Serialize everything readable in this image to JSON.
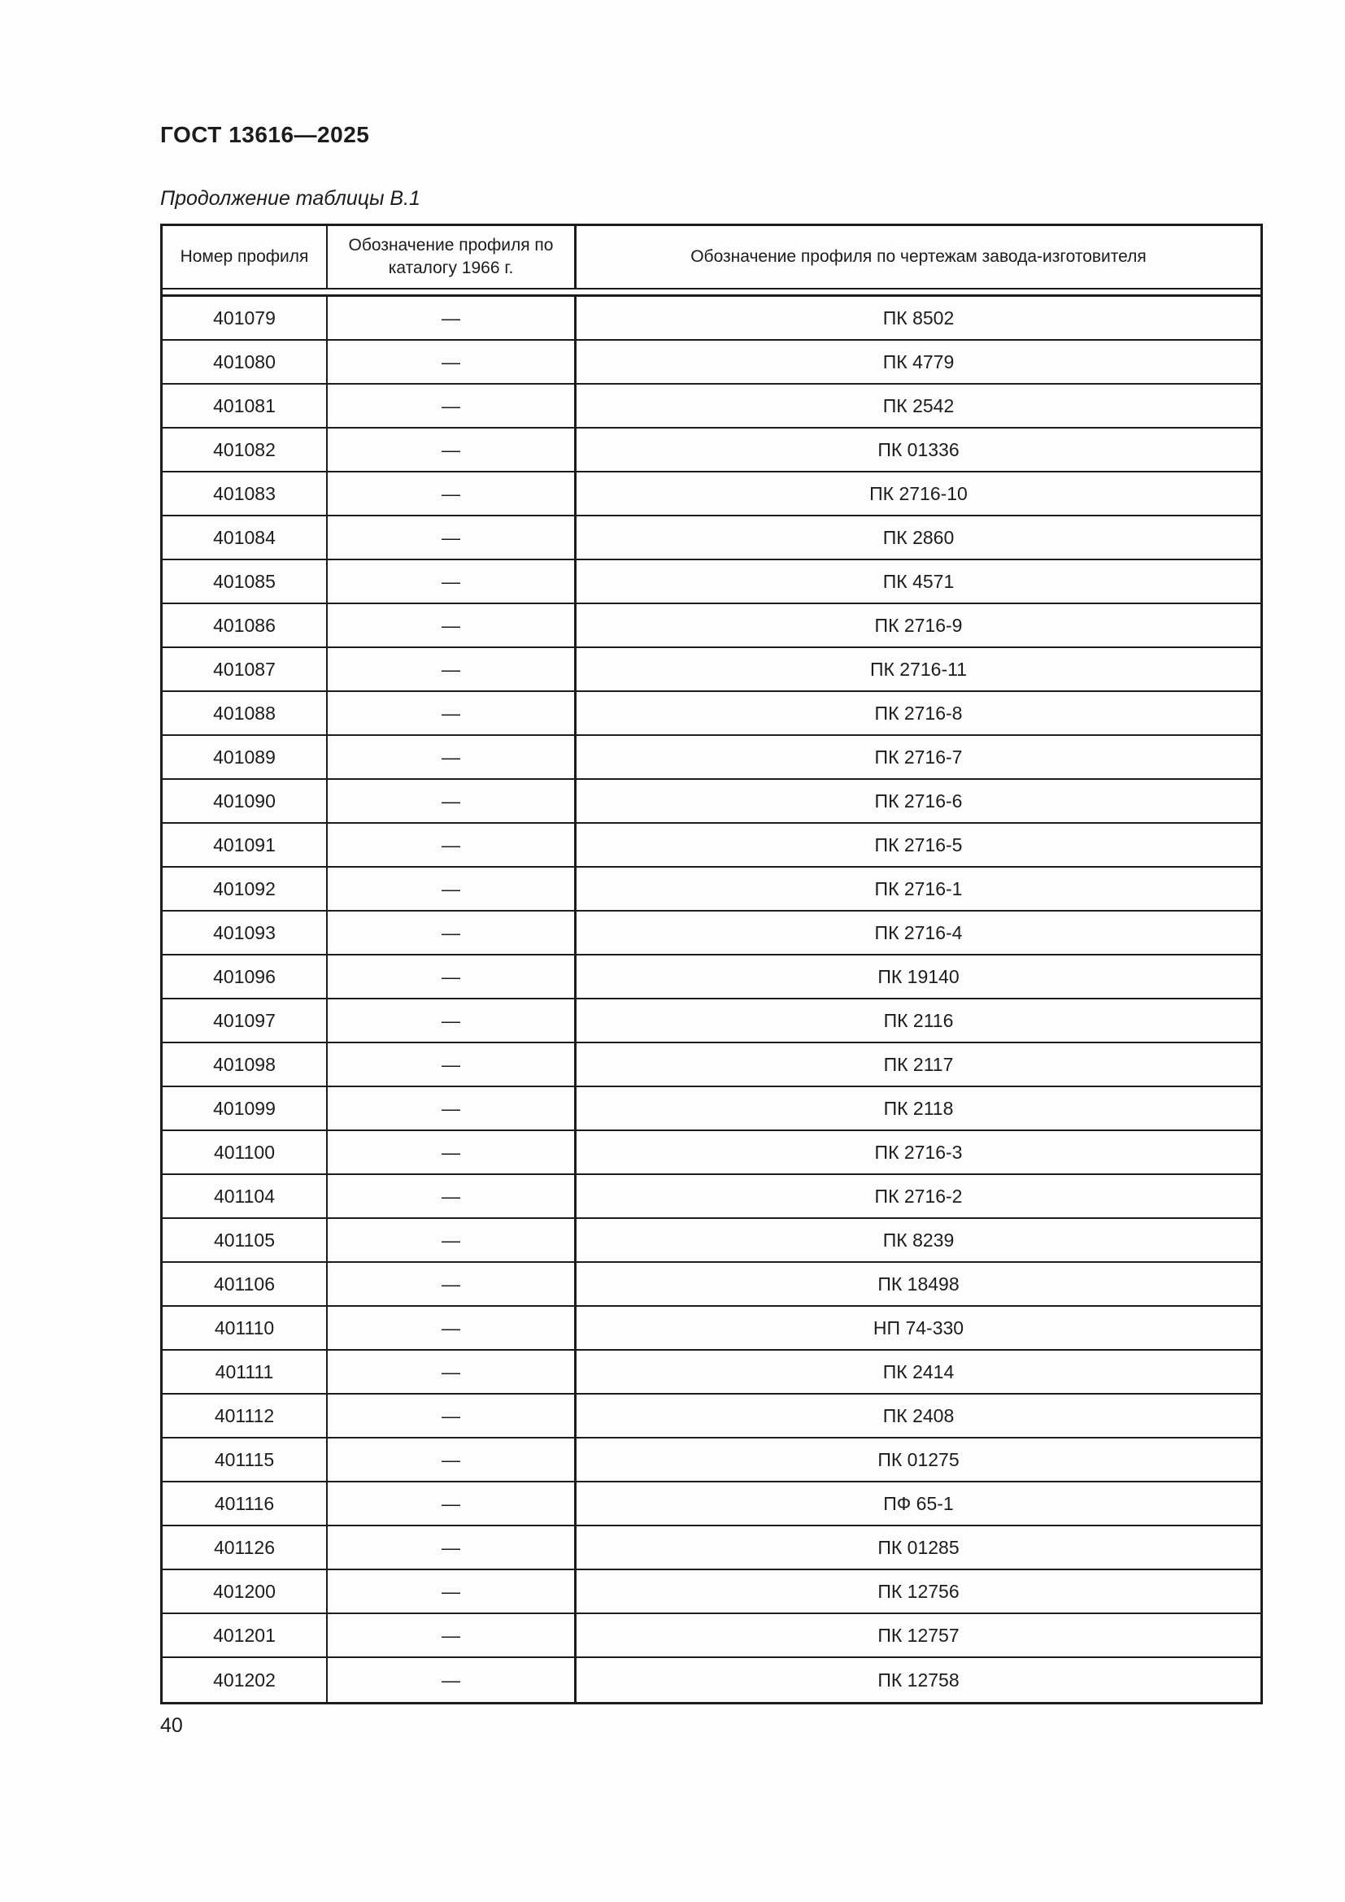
{
  "page": {
    "doc_code": "ГОСТ 13616—2025",
    "table_caption": "Продолжение таблицы В.1",
    "page_number": "40"
  },
  "table": {
    "headers": {
      "col1": "Номер профиля",
      "col2": "Обозначение профиля по каталогу 1966 г.",
      "col3": "Обозначение профиля по чертежам завода-изготовителя"
    },
    "rows": [
      {
        "num": "401079",
        "catalog": "—",
        "factory": "ПК 8502"
      },
      {
        "num": "401080",
        "catalog": "—",
        "factory": "ПК 4779"
      },
      {
        "num": "401081",
        "catalog": "—",
        "factory": "ПК 2542"
      },
      {
        "num": "401082",
        "catalog": "—",
        "factory": "ПК 01336"
      },
      {
        "num": "401083",
        "catalog": "—",
        "factory": "ПК 2716-10"
      },
      {
        "num": "401084",
        "catalog": "—",
        "factory": "ПК 2860"
      },
      {
        "num": "401085",
        "catalog": "—",
        "factory": "ПК 4571"
      },
      {
        "num": "401086",
        "catalog": "—",
        "factory": "ПК 2716-9"
      },
      {
        "num": "401087",
        "catalog": "—",
        "factory": "ПК 2716-11"
      },
      {
        "num": "401088",
        "catalog": "—",
        "factory": "ПК 2716-8"
      },
      {
        "num": "401089",
        "catalog": "—",
        "factory": "ПК 2716-7"
      },
      {
        "num": "401090",
        "catalog": "—",
        "factory": "ПК 2716-6"
      },
      {
        "num": "401091",
        "catalog": "—",
        "factory": "ПК 2716-5"
      },
      {
        "num": "401092",
        "catalog": "—",
        "factory": "ПК 2716-1"
      },
      {
        "num": "401093",
        "catalog": "—",
        "factory": "ПК 2716-4"
      },
      {
        "num": "401096",
        "catalog": "—",
        "factory": "ПК 19140"
      },
      {
        "num": "401097",
        "catalog": "—",
        "factory": "ПК 2116"
      },
      {
        "num": "401098",
        "catalog": "—",
        "factory": "ПК 2117"
      },
      {
        "num": "401099",
        "catalog": "—",
        "factory": "ПК 2118"
      },
      {
        "num": "401100",
        "catalog": "—",
        "factory": "ПК 2716-3"
      },
      {
        "num": "401104",
        "catalog": "—",
        "factory": "ПК 2716-2"
      },
      {
        "num": "401105",
        "catalog": "—",
        "factory": "ПК 8239"
      },
      {
        "num": "401106",
        "catalog": "—",
        "factory": "ПК 18498"
      },
      {
        "num": "401110",
        "catalog": "—",
        "factory": "НП 74-330"
      },
      {
        "num": "401111",
        "catalog": "—",
        "factory": "ПК 2414"
      },
      {
        "num": "401112",
        "catalog": "—",
        "factory": "ПК 2408"
      },
      {
        "num": "401115",
        "catalog": "—",
        "factory": "ПК 01275"
      },
      {
        "num": "401116",
        "catalog": "—",
        "factory": "ПФ 65-1"
      },
      {
        "num": "401126",
        "catalog": "—",
        "factory": "ПК 01285"
      },
      {
        "num": "401200",
        "catalog": "—",
        "factory": "ПК 12756"
      },
      {
        "num": "401201",
        "catalog": "—",
        "factory": "ПК 12757"
      },
      {
        "num": "401202",
        "catalog": "—",
        "factory": "ПК 12758"
      }
    ]
  }
}
